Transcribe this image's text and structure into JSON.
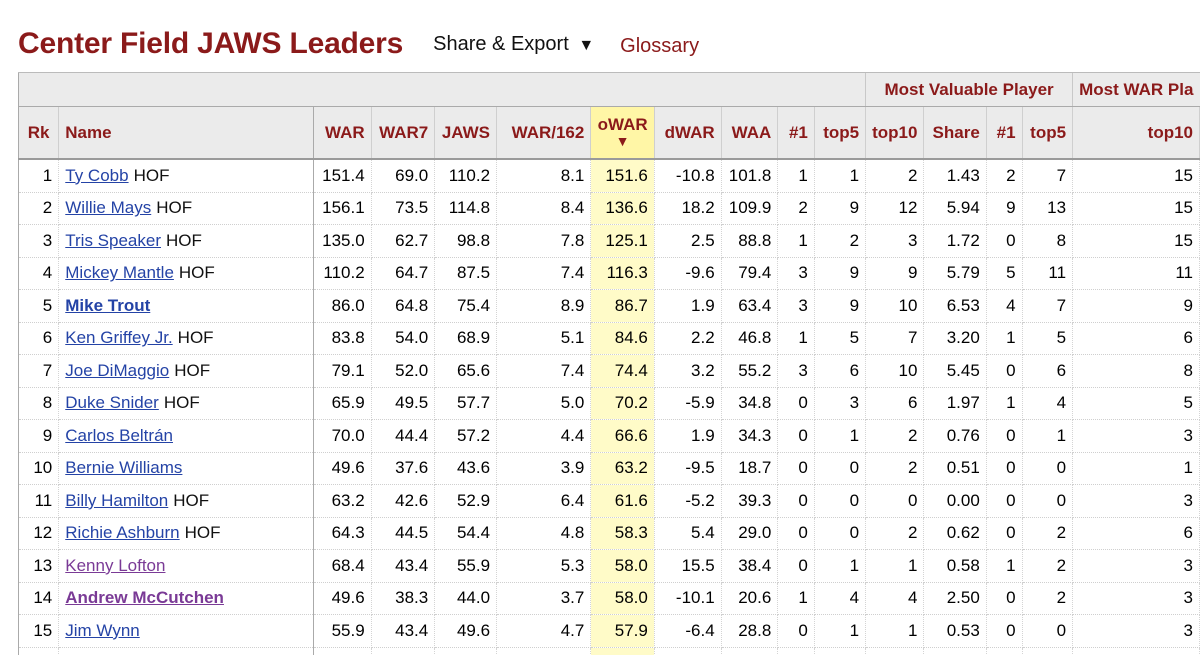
{
  "page": {
    "title": "Center Field JAWS Leaders",
    "share_export_label": "Share & Export",
    "share_export_caret": "▼",
    "glossary_label": "Glossary"
  },
  "table": {
    "over_headers": [
      {
        "label": "",
        "span": 11
      },
      {
        "label": "Most Valuable Player",
        "span": 4
      },
      {
        "label": "Most WAR Pla",
        "span": 3
      }
    ],
    "columns": [
      "Rk",
      "Name",
      "WAR",
      "WAR7",
      "JAWS",
      "WAR/162",
      "oWAR",
      "dWAR",
      "WAA",
      "#1",
      "top5",
      "top10",
      "Share",
      "#1",
      "top5",
      "top10"
    ],
    "sort_indicator": "▼",
    "sorted_column_index": 6,
    "rows": [
      {
        "rk": "1",
        "name": "Ty Cobb",
        "hof": "HOF",
        "style": "normal",
        "vals": [
          "151.4",
          "69.0",
          "110.2",
          "8.1",
          "151.6",
          "-10.8",
          "101.8",
          "1",
          "1",
          "2",
          "1.43",
          "2",
          "7",
          "15"
        ]
      },
      {
        "rk": "2",
        "name": "Willie Mays",
        "hof": "HOF",
        "style": "normal",
        "vals": [
          "156.1",
          "73.5",
          "114.8",
          "8.4",
          "136.6",
          "18.2",
          "109.9",
          "2",
          "9",
          "12",
          "5.94",
          "9",
          "13",
          "15"
        ]
      },
      {
        "rk": "3",
        "name": "Tris Speaker",
        "hof": "HOF",
        "style": "normal",
        "vals": [
          "135.0",
          "62.7",
          "98.8",
          "7.8",
          "125.1",
          "2.5",
          "88.8",
          "1",
          "2",
          "3",
          "1.72",
          "0",
          "8",
          "15"
        ]
      },
      {
        "rk": "4",
        "name": "Mickey Mantle",
        "hof": "HOF",
        "style": "normal",
        "vals": [
          "110.2",
          "64.7",
          "87.5",
          "7.4",
          "116.3",
          "-9.6",
          "79.4",
          "3",
          "9",
          "9",
          "5.79",
          "5",
          "11",
          "11"
        ]
      },
      {
        "rk": "5",
        "name": "Mike Trout",
        "hof": "",
        "style": "active",
        "vals": [
          "86.0",
          "64.8",
          "75.4",
          "8.9",
          "86.7",
          "1.9",
          "63.4",
          "3",
          "9",
          "10",
          "6.53",
          "4",
          "7",
          "9"
        ]
      },
      {
        "rk": "6",
        "name": "Ken Griffey Jr.",
        "hof": "HOF",
        "style": "normal",
        "vals": [
          "83.8",
          "54.0",
          "68.9",
          "5.1",
          "84.6",
          "2.2",
          "46.8",
          "1",
          "5",
          "7",
          "3.20",
          "1",
          "5",
          "6"
        ]
      },
      {
        "rk": "7",
        "name": "Joe DiMaggio",
        "hof": "HOF",
        "style": "normal",
        "vals": [
          "79.1",
          "52.0",
          "65.6",
          "7.4",
          "74.4",
          "3.2",
          "55.2",
          "3",
          "6",
          "10",
          "5.45",
          "0",
          "6",
          "8"
        ]
      },
      {
        "rk": "8",
        "name": "Duke Snider",
        "hof": "HOF",
        "style": "normal",
        "vals": [
          "65.9",
          "49.5",
          "57.7",
          "5.0",
          "70.2",
          "-5.9",
          "34.8",
          "0",
          "3",
          "6",
          "1.97",
          "1",
          "4",
          "5"
        ]
      },
      {
        "rk": "9",
        "name": "Carlos Beltrán",
        "hof": "",
        "style": "normal",
        "vals": [
          "70.0",
          "44.4",
          "57.2",
          "4.4",
          "66.6",
          "1.9",
          "34.3",
          "0",
          "1",
          "2",
          "0.76",
          "0",
          "1",
          "3"
        ]
      },
      {
        "rk": "10",
        "name": "Bernie Williams",
        "hof": "",
        "style": "normal",
        "vals": [
          "49.6",
          "37.6",
          "43.6",
          "3.9",
          "63.2",
          "-9.5",
          "18.7",
          "0",
          "0",
          "2",
          "0.51",
          "0",
          "0",
          "1"
        ]
      },
      {
        "rk": "11",
        "name": "Billy Hamilton",
        "hof": "HOF",
        "style": "normal",
        "vals": [
          "63.2",
          "42.6",
          "52.9",
          "6.4",
          "61.6",
          "-5.2",
          "39.3",
          "0",
          "0",
          "0",
          "0.00",
          "0",
          "0",
          "3"
        ]
      },
      {
        "rk": "12",
        "name": "Richie Ashburn",
        "hof": "HOF",
        "style": "normal",
        "vals": [
          "64.3",
          "44.5",
          "54.4",
          "4.8",
          "58.3",
          "5.4",
          "29.0",
          "0",
          "0",
          "2",
          "0.62",
          "0",
          "2",
          "6"
        ]
      },
      {
        "rk": "13",
        "name": "Kenny Lofton",
        "hof": "",
        "style": "visited",
        "vals": [
          "68.4",
          "43.4",
          "55.9",
          "5.3",
          "58.0",
          "15.5",
          "38.4",
          "0",
          "1",
          "1",
          "0.58",
          "1",
          "2",
          "3"
        ]
      },
      {
        "rk": "14",
        "name": "Andrew McCutchen",
        "hof": "",
        "style": "visited-active",
        "vals": [
          "49.6",
          "38.3",
          "44.0",
          "3.7",
          "58.0",
          "-10.1",
          "20.6",
          "1",
          "4",
          "4",
          "2.50",
          "0",
          "2",
          "3"
        ]
      },
      {
        "rk": "15",
        "name": "Jim Wynn",
        "hof": "",
        "style": "normal",
        "vals": [
          "55.9",
          "43.4",
          "49.6",
          "4.7",
          "57.9",
          "-6.4",
          "28.8",
          "0",
          "1",
          "1",
          "0.53",
          "0",
          "0",
          "3"
        ]
      },
      {
        "rk": "",
        "name": "",
        "hof": "",
        "style": "normal",
        "vals": [
          "",
          "",
          "",
          "",
          "",
          "",
          "",
          "",
          "",
          "",
          "",
          "",
          "",
          ""
        ]
      }
    ]
  },
  "colors": {
    "title_red": "#8b1a1a",
    "header_bg": "#ebebeb",
    "sorted_header_bg": "#fff6a6",
    "sorted_cell_bg": "#fffbc8",
    "link_blue": "#2443a6",
    "link_visited": "#7a3a96"
  }
}
